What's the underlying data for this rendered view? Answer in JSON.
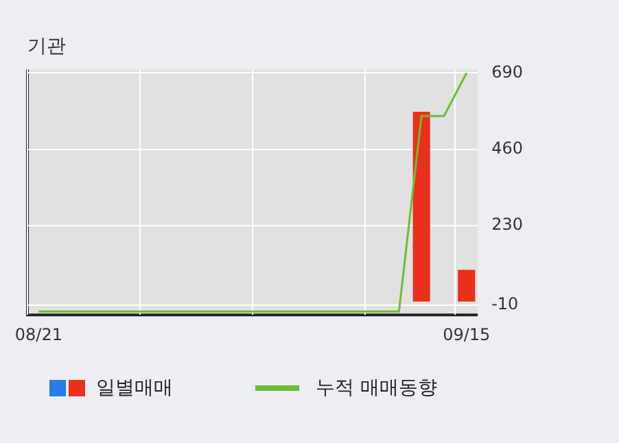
{
  "chart_data": {
    "type": "bar",
    "title": "기관",
    "categories": [
      "08/21",
      null,
      null,
      null,
      null,
      null,
      null,
      null,
      null,
      null,
      null,
      null,
      null,
      null,
      null,
      null,
      null,
      null,
      null,
      "09/15"
    ],
    "series": [
      {
        "name": "일별매매",
        "color": "#e8301c",
        "values": [
          0,
          0,
          0,
          0,
          0,
          0,
          0,
          0,
          0,
          0,
          0,
          0,
          0,
          0,
          0,
          0,
          0,
          573,
          0,
          96
        ]
      },
      {
        "name": "누적 매매동향",
        "type": "line",
        "color": "#6cbd33",
        "values": [
          -30,
          -30,
          -30,
          -30,
          -30,
          -30,
          -30,
          -30,
          -30,
          -30,
          -30,
          -30,
          -30,
          -30,
          -30,
          -30,
          -30,
          560,
          560,
          690
        ]
      }
    ],
    "ylim": [
      -40,
      700
    ],
    "yticks": [
      -10,
      230,
      460,
      690
    ],
    "grid": true,
    "legend": "bottom",
    "marker": "none"
  }
}
